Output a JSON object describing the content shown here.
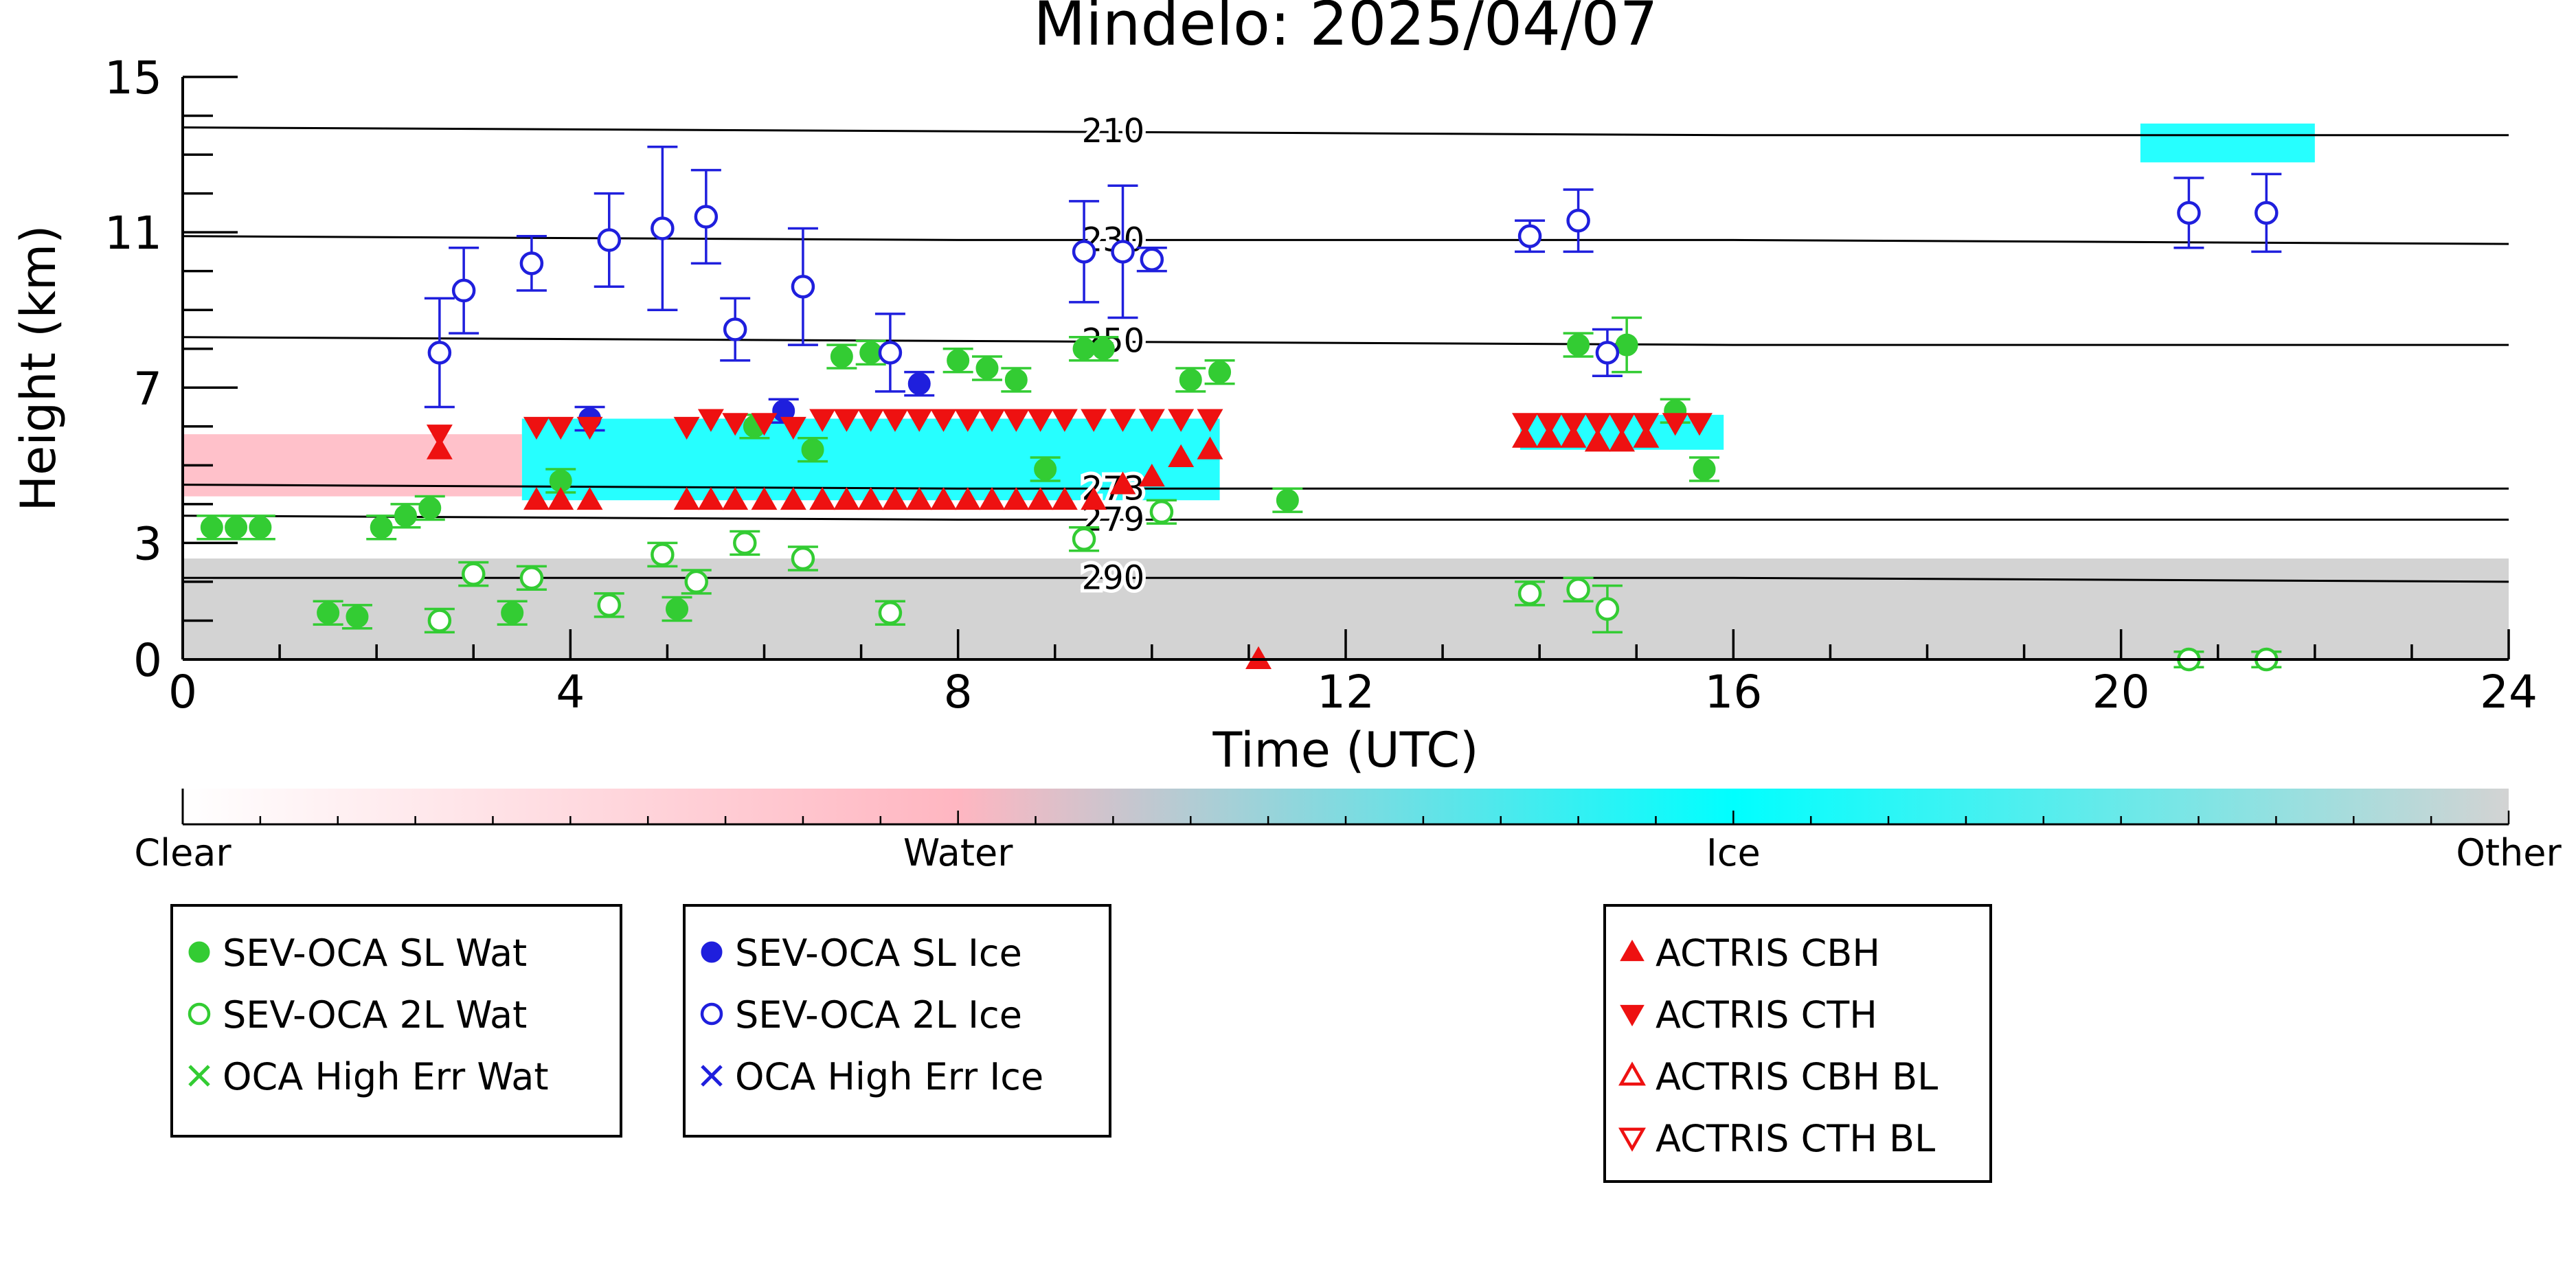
{
  "chart_data": {
    "type": "scatter",
    "title": "Mindelo: 2025/04/07",
    "xlabel": "Time (UTC)",
    "ylabel": "Height (km)",
    "xlim": [
      0,
      24
    ],
    "ylim": [
      0,
      15
    ],
    "x_ticks": [
      0,
      4,
      8,
      12,
      16,
      20,
      24
    ],
    "y_ticks": [
      0,
      3,
      7,
      11,
      15
    ],
    "grid": false,
    "isotherms": [
      {
        "label": "210",
        "label_x": 9.6,
        "points": [
          [
            0,
            13.7
          ],
          [
            8,
            13.6
          ],
          [
            16,
            13.5
          ],
          [
            24,
            13.5
          ]
        ]
      },
      {
        "label": "230",
        "label_x": 9.6,
        "points": [
          [
            0,
            10.9
          ],
          [
            8,
            10.8
          ],
          [
            16,
            10.8
          ],
          [
            24,
            10.7
          ]
        ]
      },
      {
        "label": "250",
        "label_x": 9.6,
        "points": [
          [
            0,
            8.3
          ],
          [
            8,
            8.2
          ],
          [
            16,
            8.1
          ],
          [
            24,
            8.1
          ]
        ]
      },
      {
        "label": "273",
        "label_x": 9.6,
        "points": [
          [
            0,
            4.5
          ],
          [
            8,
            4.4
          ],
          [
            16,
            4.4
          ],
          [
            24,
            4.4
          ]
        ]
      },
      {
        "label": "279",
        "label_x": 9.6,
        "points": [
          [
            0,
            3.7
          ],
          [
            8,
            3.6
          ],
          [
            16,
            3.6
          ],
          [
            24,
            3.6
          ]
        ]
      },
      {
        "label": "290",
        "label_x": 9.6,
        "points": [
          [
            0,
            2.1
          ],
          [
            8,
            2.1
          ],
          [
            16,
            2.1
          ],
          [
            24,
            2.0
          ]
        ]
      }
    ],
    "colorbar": {
      "labels": [
        "Clear",
        "Water",
        "Ice",
        "Other"
      ],
      "colors": [
        "#ffffff",
        "#ffb6c1",
        "#00ffff",
        "#d3d3d3"
      ]
    },
    "classification_regions": [
      {
        "class": "Other",
        "x0": 0.0,
        "x1": 24.0,
        "y0": 0.0,
        "y1": 2.6,
        "color": "#d3d3d3"
      },
      {
        "class": "Ice",
        "x0": 3.5,
        "x1": 10.7,
        "y0": 4.1,
        "y1": 6.2,
        "color": "#00ffff"
      },
      {
        "class": "Ice",
        "x0": 13.8,
        "x1": 15.9,
        "y0": 5.4,
        "y1": 6.3,
        "color": "#00ffff"
      },
      {
        "class": "Ice",
        "x0": 20.2,
        "x1": 22.0,
        "y0": 12.8,
        "y1": 13.8,
        "color": "#00ffff"
      },
      {
        "class": "Water",
        "x0": 0.0,
        "x1": 3.5,
        "y0": 4.2,
        "y1": 5.8,
        "color": "#ffb6c1"
      }
    ],
    "series": [
      {
        "name": "SEV-OCA SL Wat",
        "marker": "filled-circle",
        "color": "#33cc33",
        "points": [
          [
            0.3,
            3.4,
            0.3
          ],
          [
            0.55,
            3.4,
            0.3
          ],
          [
            0.8,
            3.4,
            0.3
          ],
          [
            1.5,
            1.2,
            0.3
          ],
          [
            1.8,
            1.1,
            0.3
          ],
          [
            2.05,
            3.4,
            0.3
          ],
          [
            2.3,
            3.7,
            0.3
          ],
          [
            2.55,
            3.9,
            0.3
          ],
          [
            3.4,
            1.2,
            0.3
          ],
          [
            3.9,
            4.6,
            0.3
          ],
          [
            5.1,
            1.3,
            0.3
          ],
          [
            5.9,
            6.0,
            0.3
          ],
          [
            6.5,
            5.4,
            0.3
          ],
          [
            6.8,
            7.8,
            0.3
          ],
          [
            7.1,
            7.9,
            0.3
          ],
          [
            8.0,
            7.7,
            0.3
          ],
          [
            8.3,
            7.5,
            0.3
          ],
          [
            8.6,
            7.2,
            0.3
          ],
          [
            8.9,
            4.9,
            0.3
          ],
          [
            9.3,
            8.0,
            0.3
          ],
          [
            9.5,
            8.0,
            0.3
          ],
          [
            10.4,
            7.2,
            0.3
          ],
          [
            10.7,
            7.4,
            0.3
          ],
          [
            11.4,
            4.1,
            0.3
          ],
          [
            14.4,
            8.1,
            0.3
          ],
          [
            14.9,
            8.1,
            0.7
          ],
          [
            15.4,
            6.4,
            0.3
          ],
          [
            15.7,
            4.9,
            0.3
          ]
        ]
      },
      {
        "name": "SEV-OCA 2L Wat",
        "marker": "open-circle",
        "color": "#33cc33",
        "points": [
          [
            2.65,
            1.0,
            0.3
          ],
          [
            3.0,
            2.2,
            0.3
          ],
          [
            3.6,
            2.1,
            0.3
          ],
          [
            4.4,
            1.4,
            0.3
          ],
          [
            4.95,
            2.7,
            0.3
          ],
          [
            5.3,
            2.0,
            0.3
          ],
          [
            5.8,
            3.0,
            0.3
          ],
          [
            6.4,
            2.6,
            0.3
          ],
          [
            7.3,
            1.2,
            0.3
          ],
          [
            9.3,
            3.1,
            0.3
          ],
          [
            10.1,
            3.8,
            0.3
          ],
          [
            13.9,
            1.7,
            0.3
          ],
          [
            14.4,
            1.8,
            0.3
          ],
          [
            14.7,
            1.3,
            0.6
          ],
          [
            20.7,
            0.0,
            0.2
          ],
          [
            21.5,
            0.0,
            0.2
          ]
        ]
      },
      {
        "name": "OCA High Err Wat",
        "marker": "x",
        "color": "#33cc33",
        "points": []
      },
      {
        "name": "SEV-OCA SL Ice",
        "marker": "filled-circle",
        "color": "#1f1fdd",
        "points": [
          [
            4.2,
            6.2,
            0.3
          ],
          [
            6.2,
            6.4,
            0.3
          ],
          [
            7.6,
            7.1,
            0.3
          ]
        ]
      },
      {
        "name": "SEV-OCA 2L Ice",
        "marker": "open-circle",
        "color": "#1f1fdd",
        "points": [
          [
            2.65,
            7.9,
            1.4
          ],
          [
            2.9,
            9.5,
            1.1
          ],
          [
            3.6,
            10.2,
            0.7
          ],
          [
            4.4,
            10.8,
            1.2
          ],
          [
            4.95,
            11.1,
            2.1
          ],
          [
            5.4,
            11.4,
            1.2
          ],
          [
            5.7,
            8.5,
            0.8
          ],
          [
            6.4,
            9.6,
            1.5
          ],
          [
            7.3,
            7.9,
            1.0
          ],
          [
            9.3,
            10.5,
            1.3
          ],
          [
            9.7,
            10.5,
            1.7
          ],
          [
            10.0,
            10.3,
            0.3
          ],
          [
            13.9,
            10.9,
            0.4
          ],
          [
            14.4,
            11.3,
            0.8
          ],
          [
            14.7,
            7.9,
            0.6
          ],
          [
            20.7,
            11.5,
            0.9
          ],
          [
            21.5,
            11.5,
            1.0
          ]
        ]
      },
      {
        "name": "OCA High Err Ice",
        "marker": "x",
        "color": "#1f1fdd",
        "points": []
      },
      {
        "name": "ACTRIS CBH",
        "marker": "triangle-up",
        "color": "#ee1111",
        "points": [
          [
            2.65,
            5.4
          ],
          [
            3.65,
            4.1
          ],
          [
            3.9,
            4.1
          ],
          [
            4.2,
            4.1
          ],
          [
            5.2,
            4.1
          ],
          [
            5.45,
            4.1
          ],
          [
            5.7,
            4.1
          ],
          [
            6.0,
            4.1
          ],
          [
            6.3,
            4.1
          ],
          [
            6.6,
            4.1
          ],
          [
            6.85,
            4.1
          ],
          [
            7.1,
            4.1
          ],
          [
            7.35,
            4.1
          ],
          [
            7.6,
            4.1
          ],
          [
            7.85,
            4.1
          ],
          [
            8.1,
            4.1
          ],
          [
            8.35,
            4.1
          ],
          [
            8.6,
            4.1
          ],
          [
            8.85,
            4.1
          ],
          [
            9.1,
            4.1
          ],
          [
            9.4,
            4.1
          ],
          [
            9.7,
            4.5
          ],
          [
            10.0,
            4.7
          ],
          [
            10.3,
            5.2
          ],
          [
            10.6,
            5.4
          ],
          [
            11.1,
            0.0
          ],
          [
            13.85,
            5.7
          ],
          [
            14.1,
            5.7
          ],
          [
            14.35,
            5.7
          ],
          [
            14.6,
            5.6
          ],
          [
            14.85,
            5.6
          ],
          [
            15.1,
            5.7
          ]
        ]
      },
      {
        "name": "ACTRIS CTH",
        "marker": "triangle-down",
        "color": "#ee1111",
        "points": [
          [
            2.65,
            5.8
          ],
          [
            3.65,
            6.0
          ],
          [
            3.9,
            6.0
          ],
          [
            4.2,
            6.0
          ],
          [
            5.2,
            6.0
          ],
          [
            5.45,
            6.2
          ],
          [
            5.7,
            6.1
          ],
          [
            6.0,
            6.1
          ],
          [
            6.3,
            6.0
          ],
          [
            6.6,
            6.2
          ],
          [
            6.85,
            6.2
          ],
          [
            7.1,
            6.2
          ],
          [
            7.35,
            6.2
          ],
          [
            7.6,
            6.2
          ],
          [
            7.85,
            6.2
          ],
          [
            8.1,
            6.2
          ],
          [
            8.35,
            6.2
          ],
          [
            8.6,
            6.2
          ],
          [
            8.85,
            6.2
          ],
          [
            9.1,
            6.2
          ],
          [
            9.4,
            6.2
          ],
          [
            9.7,
            6.2
          ],
          [
            10.0,
            6.2
          ],
          [
            10.3,
            6.2
          ],
          [
            10.6,
            6.2
          ],
          [
            13.85,
            6.1
          ],
          [
            14.1,
            6.1
          ],
          [
            14.35,
            6.1
          ],
          [
            14.6,
            6.1
          ],
          [
            14.85,
            6.1
          ],
          [
            15.1,
            6.1
          ],
          [
            15.4,
            6.1
          ],
          [
            15.65,
            6.1
          ]
        ]
      },
      {
        "name": "ACTRIS CBH BL",
        "marker": "triangle-up-open",
        "color": "#ee1111",
        "points": []
      },
      {
        "name": "ACTRIS CTH BL",
        "marker": "triangle-down-open",
        "color": "#ee1111",
        "points": []
      }
    ],
    "legend_groups": [
      [
        "SEV-OCA SL Wat",
        "SEV-OCA 2L Wat",
        "OCA High Err Wat"
      ],
      [
        "SEV-OCA SL Ice",
        "SEV-OCA 2L Ice",
        "OCA High Err Ice"
      ],
      [
        "ACTRIS CBH",
        "ACTRIS CTH",
        "ACTRIS CBH BL",
        "ACTRIS CTH BL"
      ]
    ],
    "legend_placement": "below"
  }
}
